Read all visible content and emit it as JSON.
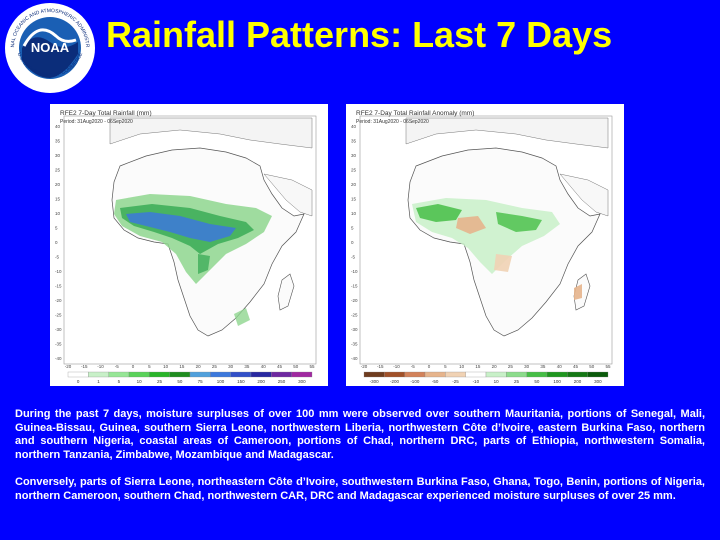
{
  "header": {
    "title": "Rainfall Patterns: Last 7 Days",
    "logo": {
      "text": "NOAA",
      "arc_text": "NATIONAL OCEANIC AND ATMOSPHERIC ADMINISTRATION",
      "bottom_text": "U.S. DEPARTMENT OF COMMERCE"
    }
  },
  "maps": [
    {
      "title": "RFE2 7-Day Total Rainfall (mm)",
      "period": "Period: 31Aug2020 - 06Sep2020",
      "legend_values": [
        "0",
        "1",
        "5",
        "10",
        "25",
        "50",
        "75",
        "100",
        "150",
        "200",
        "250",
        "300"
      ],
      "legend_colors": [
        "#ffffff",
        "#c8f0c8",
        "#96e696",
        "#5ad25a",
        "#28b428",
        "#1e8c1e",
        "#50a0dc",
        "#3c78dc",
        "#3250c8",
        "#2828a0",
        "#6e28a0",
        "#a028a0"
      ]
    },
    {
      "title": "RFE2 7-Day Total Rainfall Anomaly (mm)",
      "period": "Period: 31Aug2020 - 06Sep2020",
      "legend_values": [
        "-300",
        "-200",
        "-100",
        "-50",
        "-25",
        "-10",
        "10",
        "25",
        "50",
        "100",
        "200",
        "300"
      ],
      "legend_colors": [
        "#6e3c1e",
        "#a05028",
        "#d2825a",
        "#e6b48c",
        "#f0d2b4",
        "#ffffff",
        "#c8f0c8",
        "#8cdc8c",
        "#46be46",
        "#1e961e",
        "#147814",
        "#0a5a0a"
      ]
    }
  ],
  "axis_labels": {
    "lat": [
      "40",
      "35",
      "30",
      "25",
      "20",
      "15",
      "10",
      "5",
      "0",
      "-5",
      "-10",
      "-15",
      "-20",
      "-25",
      "-30",
      "-35",
      "-40"
    ],
    "lon": [
      "-20",
      "-15",
      "-10",
      "-5",
      "0",
      "5",
      "10",
      "15",
      "20",
      "25",
      "30",
      "35",
      "40",
      "45",
      "50",
      "55"
    ]
  },
  "description": {
    "paragraph1": "During the past 7 days, moisture surpluses of over 100 mm were observed over southern Mauritania, portions of Senegal, Mali, Guinea-Bissau, Guinea, southern Sierra Leone, northwestern Liberia, northwestern Côte d’Ivoire, eastern Burkina Faso, northern and southern Nigeria, coastal areas of Cameroon, portions of Chad, northern DRC, parts of Ethiopia, northwestern Somalia, northern Tanzania, Zimbabwe, Mozambique and Madagascar.",
    "paragraph2": "Conversely, parts of Sierra Leone, northeastern Côte d’Ivoire, southwestern Burkina Faso, Ghana, Togo, Benin, portions of Nigeria, northern Cameroon, southern Chad, northwestern CAR, DRC and Madagascar experienced moisture surpluses of over 25 mm."
  }
}
